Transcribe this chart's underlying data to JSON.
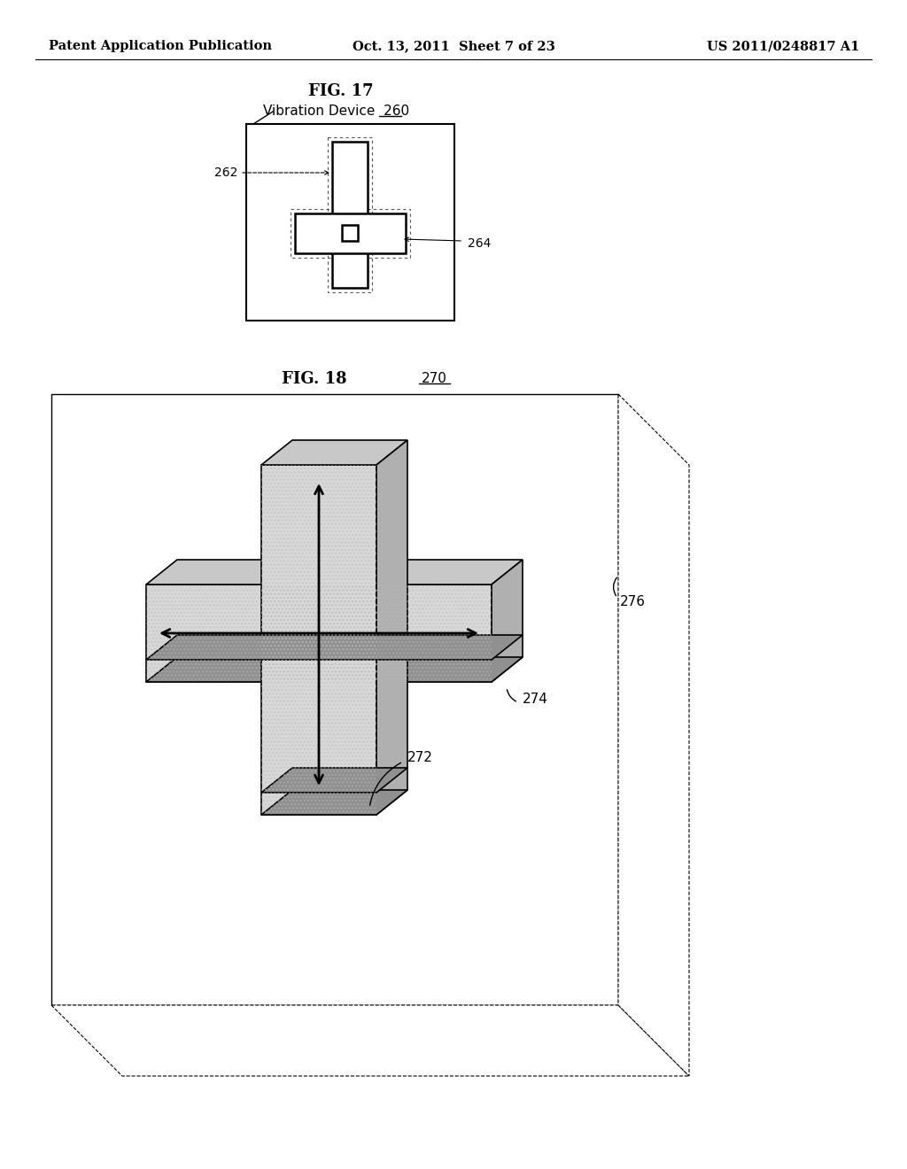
{
  "bg_color": "#ffffff",
  "header_left": "Patent Application Publication",
  "header_center": "Oct. 13, 2011  Sheet 7 of 23",
  "header_right": "US 2011/0248817 A1",
  "fig17_title": "FIG. 17",
  "fig17_label": "Vibration Device",
  "fig17_label_num": "260",
  "label_262": "262",
  "label_264": "264",
  "fig18_title": "FIG. 18",
  "fig18_num": "270",
  "label_272": "272",
  "label_274": "274",
  "label_276": "276",
  "cross_front": "#d8d8d8",
  "cross_top": "#c8c8c8",
  "cross_right": "#b0b0b0",
  "cross_bottom": "#909090",
  "hatch_color": "#b0b0b0"
}
